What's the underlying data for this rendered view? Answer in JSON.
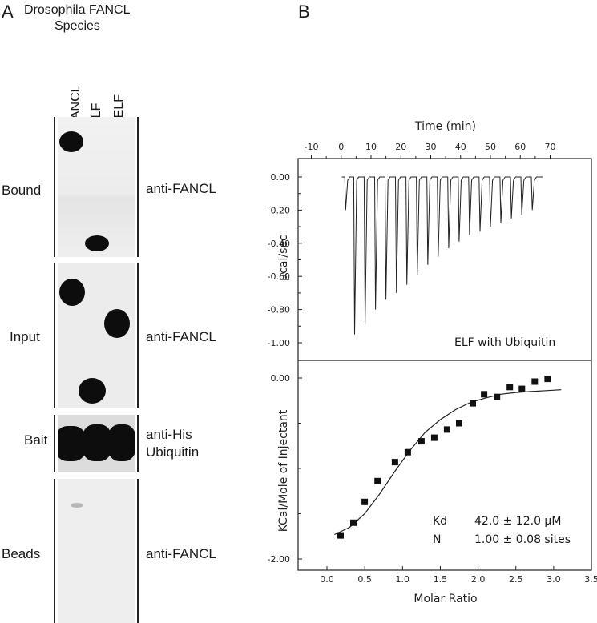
{
  "panel_a": {
    "letter": "A",
    "title_line1": "Drosophila FANCL",
    "title_line2": "Species",
    "lanes": [
      "FANCL",
      "ELF",
      "ΔELF"
    ],
    "rows": [
      {
        "name": "Bound",
        "antibody": "anti-FANCL"
      },
      {
        "name": "Input",
        "antibody": "anti-FANCL"
      },
      {
        "name": "Bait",
        "antibody": "anti-His"
      },
      {
        "name": "Beads",
        "antibody": "anti-FANCL"
      }
    ],
    "bait_antibody_line2": "Ubiquitin"
  },
  "panel_b": {
    "letter": "B",
    "annotation": "ELF with Ubiquitin",
    "fit": {
      "kd_label": "Kd",
      "kd_value": "42.0 ± 12.0 μM",
      "n_label": "N",
      "n_value": "1.00 ± 0.08 sites"
    }
  },
  "chart_data": [
    {
      "type": "line",
      "title": "",
      "xlabel": "Time (min)",
      "ylabel": "μcal/sec",
      "xlim": [
        -10,
        70
      ],
      "ylim": [
        -1.1,
        0.08
      ],
      "x_ticks": [
        "-10",
        "0",
        "10",
        "20",
        "30",
        "40",
        "50",
        "60",
        "70"
      ],
      "y_ticks": [
        "0.00",
        "-0.20",
        "-0.40",
        "-0.60",
        "-0.80",
        "-1.00"
      ],
      "series": [
        {
          "peak_time_min": [
            1.5,
            4.5,
            8,
            11.5,
            15,
            18.5,
            22,
            25.5,
            29,
            32.5,
            36,
            39.5,
            43,
            46.5,
            50,
            53.5,
            57,
            60.5,
            64
          ],
          "peak_ucal_per_sec": [
            -0.2,
            -0.95,
            -0.89,
            -0.8,
            -0.74,
            -0.7,
            -0.65,
            -0.59,
            -0.53,
            -0.48,
            -0.43,
            -0.39,
            -0.35,
            -0.33,
            -0.3,
            -0.28,
            -0.25,
            -0.23,
            -0.2
          ]
        }
      ]
    },
    {
      "type": "scatter",
      "title": "",
      "xlabel": "Molar Ratio",
      "ylabel": "KCal/Mole of Injectant",
      "xlim": [
        -0.3,
        3.5
      ],
      "ylim": [
        -2.1,
        0.1
      ],
      "x_ticks": [
        "0.0",
        "0.5",
        "1.0",
        "1.5",
        "2.0",
        "2.5",
        "3.0",
        "3.5"
      ],
      "y_ticks": [
        "0.00",
        "-2.00"
      ],
      "series": [
        {
          "x": [
            0.18,
            0.35,
            0.5,
            0.67,
            0.9,
            1.07,
            1.25,
            1.42,
            1.59,
            1.75,
            1.93,
            2.08,
            2.25,
            2.42,
            2.58,
            2.75,
            2.92
          ],
          "y": [
            -1.74,
            -1.6,
            -1.37,
            -1.14,
            -0.93,
            -0.82,
            -0.7,
            -0.66,
            -0.57,
            -0.5,
            -0.28,
            -0.18,
            -0.21,
            -0.1,
            -0.12,
            -0.04,
            -0.01
          ],
          "fit_x": [
            0.1,
            0.3,
            0.5,
            0.7,
            0.9,
            1.1,
            1.3,
            1.5,
            1.7,
            1.9,
            2.1,
            2.3,
            2.5,
            2.7,
            2.9,
            3.1
          ],
          "fit_y": [
            -1.73,
            -1.65,
            -1.5,
            -1.28,
            -1.03,
            -0.8,
            -0.6,
            -0.46,
            -0.35,
            -0.27,
            -0.22,
            -0.18,
            -0.16,
            -0.15,
            -0.14,
            -0.13
          ]
        }
      ]
    }
  ]
}
